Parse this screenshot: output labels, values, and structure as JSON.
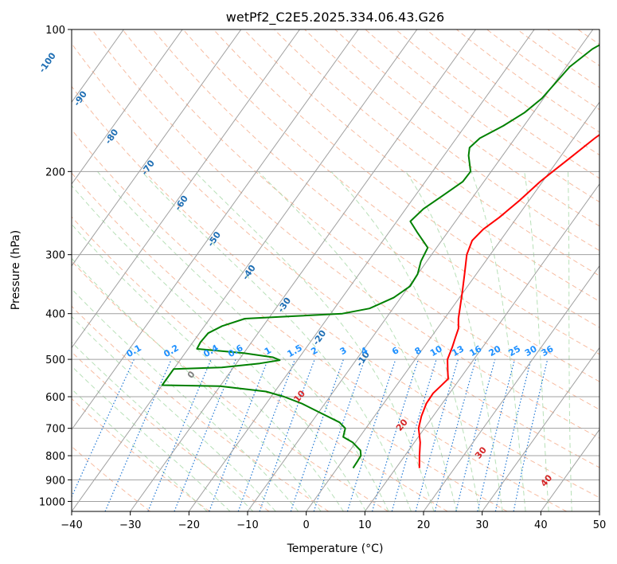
{
  "chart_data": {
    "type": "line",
    "subtype": "skew-T log-P diagram",
    "title": "wetPf2_C2E5.2025.334.06.43.G26",
    "xlabel": "Temperature (°C)",
    "ylabel": "Pressure (hPa)",
    "xlim": [
      -40,
      50
    ],
    "ylim": [
      1050,
      100
    ],
    "y_scale": "log",
    "x_ticks": [
      -40,
      -30,
      -20,
      -10,
      0,
      10,
      20,
      30,
      40,
      50
    ],
    "y_ticks": [
      100,
      200,
      300,
      400,
      500,
      600,
      700,
      800,
      900,
      1000
    ],
    "grid": true,
    "series": [
      {
        "role": "temperature",
        "color": "#ff0000",
        "points": [
          [
            850,
            14.0
          ],
          [
            800,
            12.5
          ],
          [
            750,
            11.0
          ],
          [
            700,
            9.0
          ],
          [
            660,
            8.0
          ],
          [
            620,
            7.3
          ],
          [
            590,
            7.2
          ],
          [
            570,
            7.6
          ],
          [
            550,
            8.0
          ],
          [
            530,
            7.0
          ],
          [
            500,
            5.5
          ],
          [
            470,
            4.8
          ],
          [
            450,
            4.2
          ],
          [
            430,
            3.6
          ],
          [
            410,
            2.4
          ],
          [
            390,
            1.4
          ],
          [
            360,
            -0.2
          ],
          [
            330,
            -2.0
          ],
          [
            300,
            -4.0
          ],
          [
            280,
            -4.8
          ],
          [
            265,
            -4.3
          ],
          [
            250,
            -3.0
          ],
          [
            230,
            -1.6
          ],
          [
            210,
            -0.4
          ],
          [
            200,
            0.5
          ],
          [
            185,
            2.0
          ],
          [
            170,
            3.6
          ],
          [
            160,
            5.0
          ],
          [
            150,
            5.9
          ],
          [
            140,
            6.5
          ],
          [
            130,
            7.4
          ],
          [
            120,
            8.8
          ],
          [
            110,
            10.6
          ],
          [
            105,
            10.7
          ],
          [
            100,
            10.0
          ]
        ]
      },
      {
        "role": "dewpoint",
        "color": "#008000",
        "points": [
          [
            850,
            2.7
          ],
          [
            820,
            2.6
          ],
          [
            800,
            2.5
          ],
          [
            780,
            1.8
          ],
          [
            750,
            -0.5
          ],
          [
            730,
            -2.8
          ],
          [
            700,
            -3.5
          ],
          [
            680,
            -5.2
          ],
          [
            650,
            -9.5
          ],
          [
            620,
            -14.0
          ],
          [
            600,
            -17.8
          ],
          [
            585,
            -21.5
          ],
          [
            570,
            -30.0
          ],
          [
            567,
            -40.0
          ],
          [
            524,
            -40.0
          ],
          [
            520,
            -32.0
          ],
          [
            510,
            -26.0
          ],
          [
            502,
            -23.0
          ],
          [
            495,
            -24.5
          ],
          [
            485,
            -30.0
          ],
          [
            475,
            -38.5
          ],
          [
            460,
            -38.7
          ],
          [
            440,
            -38.5
          ],
          [
            425,
            -37.0
          ],
          [
            410,
            -34.0
          ],
          [
            405,
            -26.0
          ],
          [
            400,
            -18.0
          ],
          [
            390,
            -14.0
          ],
          [
            370,
            -11.2
          ],
          [
            350,
            -9.8
          ],
          [
            330,
            -10.0
          ],
          [
            310,
            -11.0
          ],
          [
            290,
            -11.5
          ],
          [
            270,
            -15.0
          ],
          [
            255,
            -17.7
          ],
          [
            240,
            -17.0
          ],
          [
            225,
            -15.3
          ],
          [
            210,
            -13.6
          ],
          [
            200,
            -13.5
          ],
          [
            185,
            -15.8
          ],
          [
            178,
            -16.6
          ],
          [
            170,
            -16.0
          ],
          [
            160,
            -13.5
          ],
          [
            150,
            -11.5
          ],
          [
            140,
            -10.3
          ],
          [
            120,
            -9.4
          ],
          [
            110,
            -7.7
          ],
          [
            105,
            -6.0
          ],
          [
            100,
            -3.7
          ]
        ]
      }
    ],
    "mixing_ratio_labels": [
      "0.1",
      "0.2",
      "0.4",
      "0.6",
      "1",
      "1.5",
      "2",
      "3",
      "4",
      "6",
      "8",
      "10",
      "13",
      "16",
      "20",
      "25",
      "30",
      "36"
    ],
    "dry_adiabat_labels": [
      "-100",
      "-90",
      "-80",
      "-70",
      "-60",
      "-50",
      "-40",
      "-30",
      "-20",
      "-10"
    ],
    "moist_adiabat_labels": [
      "0",
      "10",
      "20",
      "30",
      "40"
    ],
    "colors": {
      "temperature": "#ff0000",
      "dewpoint": "#008000",
      "dry_adiabat": "#f4a582",
      "moist_adiabat": "#a6d8a6",
      "mixing_ratio": "#1f77d4",
      "isotherm": "#a0a0a0",
      "dry_label": "#1f6fb4",
      "mixing_label": "#1e90ff",
      "moist_zero_label": "#808080",
      "moist_label": "#d62728"
    }
  }
}
